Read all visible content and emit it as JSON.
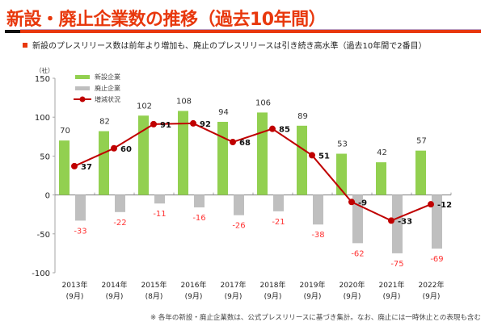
{
  "header": {
    "title": "新設・廃止企業数の推移（過去10年間）",
    "subtitle": "新設のプレスリリース数は前年より増加も、廃止のプレスリリースは引き続き高水準（過去10年間で2番目）",
    "footnote": "※ 各年の新設・廃止企業数は、公式プレスリリースに基づき集計。なお、廃止には一時休止との表現も含む"
  },
  "colors": {
    "accent": "#e8380d",
    "new_bar": "#92d050",
    "closed_bar": "#bfbfbf",
    "net_line": "#c00000",
    "closed_label": "#ff3333"
  },
  "chart_data": {
    "type": "bar",
    "title": "",
    "ylabel": "（社）",
    "xlabel": "",
    "ylim": [
      -100,
      150
    ],
    "yticks": [
      150,
      100,
      50,
      0,
      -50,
      -100
    ],
    "grid": false,
    "legend_position": "top-left",
    "categories": [
      {
        "year": "2013年",
        "month": "(9月)"
      },
      {
        "year": "2014年",
        "month": "(9月)"
      },
      {
        "year": "2015年",
        "month": "(8月)"
      },
      {
        "year": "2016年",
        "month": "(9月)"
      },
      {
        "year": "2017年",
        "month": "(9月)"
      },
      {
        "year": "2018年",
        "month": "(9月)"
      },
      {
        "year": "2019年",
        "month": "(9月)"
      },
      {
        "year": "2020年",
        "month": "(9月)"
      },
      {
        "year": "2021年",
        "month": "(9月)"
      },
      {
        "year": "2022年",
        "month": "(9月)"
      }
    ],
    "series": [
      {
        "name": "新設企業",
        "type": "bar",
        "values": [
          70,
          82,
          102,
          108,
          94,
          106,
          89,
          53,
          42,
          57
        ]
      },
      {
        "name": "廃止企業",
        "type": "bar",
        "values": [
          -33,
          -22,
          -11,
          -16,
          -26,
          -21,
          -38,
          -62,
          -75,
          -69
        ]
      },
      {
        "name": "増減状況",
        "type": "line",
        "values": [
          37,
          60,
          91,
          92,
          68,
          85,
          51,
          -9,
          -33,
          -12
        ]
      }
    ]
  }
}
